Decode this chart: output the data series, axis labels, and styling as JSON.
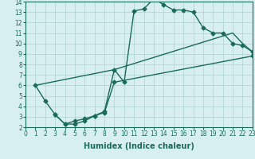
{
  "line1_x": [
    1,
    2,
    3,
    4,
    5,
    6,
    7,
    8,
    9,
    10,
    11,
    12,
    13,
    14,
    15,
    16,
    17,
    18,
    19,
    20,
    21,
    22,
    23
  ],
  "line1_y": [
    6.0,
    4.5,
    3.2,
    2.3,
    2.3,
    2.6,
    3.1,
    3.5,
    7.5,
    6.3,
    13.1,
    13.3,
    14.3,
    13.7,
    13.2,
    13.2,
    13.0,
    11.5,
    11.0,
    11.0,
    10.0,
    9.8,
    9.2
  ],
  "line2_x": [
    1,
    9,
    21,
    22,
    23
  ],
  "line2_y": [
    6.0,
    7.5,
    11.0,
    10.0,
    9.2
  ],
  "line3_x": [
    3,
    4,
    5,
    6,
    7,
    8,
    9,
    23
  ],
  "line3_y": [
    3.2,
    2.3,
    2.6,
    2.8,
    3.1,
    3.4,
    6.3,
    8.8
  ],
  "line_color": "#1a6b5a",
  "bg_color": "#d8efef",
  "grid_color": "#afd0d0",
  "xlabel": "Humidex (Indice chaleur)",
  "xlim": [
    0,
    23
  ],
  "ylim": [
    2,
    14
  ],
  "xticks": [
    0,
    1,
    2,
    3,
    4,
    5,
    6,
    7,
    8,
    9,
    10,
    11,
    12,
    13,
    14,
    15,
    16,
    17,
    18,
    19,
    20,
    21,
    22,
    23
  ],
  "yticks": [
    2,
    3,
    4,
    5,
    6,
    7,
    8,
    9,
    10,
    11,
    12,
    13,
    14
  ],
  "marker": "D",
  "markersize": 2.5,
  "linewidth": 1.0,
  "xlabel_fontsize": 7,
  "tick_fontsize": 5.5
}
